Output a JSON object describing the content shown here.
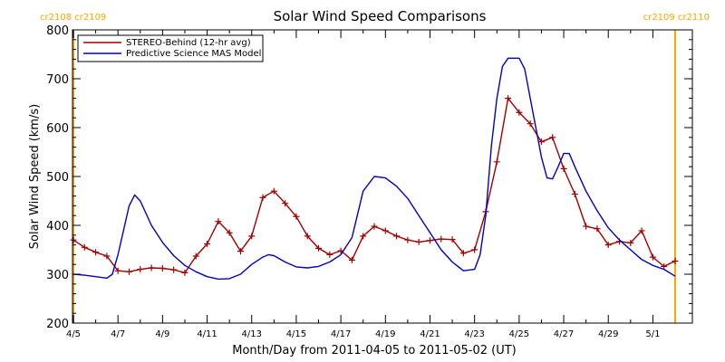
{
  "chart_data": {
    "type": "line",
    "title": "Solar Wind Speed Comparisons",
    "xlabel": "Month/Day from 2011-04-05 to 2011-05-02 (UT)",
    "ylabel": "Solar Wind Speed (km/s)",
    "xlim": [
      "2011-04-05",
      "2011-05-02"
    ],
    "ylim": [
      200,
      800
    ],
    "yticks": [
      200,
      300,
      400,
      500,
      600,
      700,
      800
    ],
    "xticks": [
      {
        "date": "2011-04-05",
        "label": "4/5"
      },
      {
        "date": "2011-04-07",
        "label": "4/7"
      },
      {
        "date": "2011-04-09",
        "label": "4/9"
      },
      {
        "date": "2011-04-11",
        "label": "4/11"
      },
      {
        "date": "2011-04-13",
        "label": "4/13"
      },
      {
        "date": "2011-04-15",
        "label": "4/15"
      },
      {
        "date": "2011-04-17",
        "label": "4/17"
      },
      {
        "date": "2011-04-19",
        "label": "4/19"
      },
      {
        "date": "2011-04-21",
        "label": "4/21"
      },
      {
        "date": "2011-04-23",
        "label": "4/23"
      },
      {
        "date": "2011-04-25",
        "label": "4/25"
      },
      {
        "date": "2011-04-27",
        "label": "4/27"
      },
      {
        "date": "2011-04-29",
        "label": "4/29"
      },
      {
        "date": "2011-05-01",
        "label": "5/1"
      }
    ],
    "legend_position": "top-left",
    "grid": false,
    "carrington_markers": [
      {
        "date": "2011-04-05 00:00",
        "label": "cr2108 cr2109",
        "side": "left"
      },
      {
        "date": "2011-05-02 00:00",
        "label": "cr2109 cr2110",
        "side": "right"
      }
    ],
    "series": [
      {
        "name": "STEREO-Behind (12-hr avg)",
        "color": "#a00000",
        "marker": "plus",
        "points": [
          [
            "2011-04-05 00:00",
            370
          ],
          [
            "2011-04-05 12:00",
            355
          ],
          [
            "2011-04-06 00:00",
            345
          ],
          [
            "2011-04-06 12:00",
            337
          ],
          [
            "2011-04-07 00:00",
            307
          ],
          [
            "2011-04-07 12:00",
            305
          ],
          [
            "2011-04-08 00:00",
            310
          ],
          [
            "2011-04-08 12:00",
            313
          ],
          [
            "2011-04-09 00:00",
            312
          ],
          [
            "2011-04-09 12:00",
            309
          ],
          [
            "2011-04-10 00:00",
            303
          ],
          [
            "2011-04-10 12:00",
            337
          ],
          [
            "2011-04-11 00:00",
            362
          ],
          [
            "2011-04-11 12:00",
            408
          ],
          [
            "2011-04-12 00:00",
            385
          ],
          [
            "2011-04-12 12:00",
            347
          ],
          [
            "2011-04-13 00:00",
            378
          ],
          [
            "2011-04-13 12:00",
            457
          ],
          [
            "2011-04-14 00:00",
            470
          ],
          [
            "2011-04-14 12:00",
            445
          ],
          [
            "2011-04-15 00:00",
            418
          ],
          [
            "2011-04-15 12:00",
            378
          ],
          [
            "2011-04-16 00:00",
            353
          ],
          [
            "2011-04-16 12:00",
            340
          ],
          [
            "2011-04-17 00:00",
            348
          ],
          [
            "2011-04-17 12:00",
            329
          ],
          [
            "2011-04-18 00:00",
            378
          ],
          [
            "2011-04-18 12:00",
            398
          ],
          [
            "2011-04-19 00:00",
            389
          ],
          [
            "2011-04-19 12:00",
            378
          ],
          [
            "2011-04-20 00:00",
            370
          ],
          [
            "2011-04-20 12:00",
            366
          ],
          [
            "2011-04-21 00:00",
            369
          ],
          [
            "2011-04-21 12:00",
            372
          ],
          [
            "2011-04-22 00:00",
            371
          ],
          [
            "2011-04-22 12:00",
            343
          ],
          [
            "2011-04-23 00:00",
            350
          ],
          [
            "2011-04-23 12:00",
            428
          ],
          [
            "2011-04-24 00:00",
            530
          ],
          [
            "2011-04-24 12:00",
            660
          ],
          [
            "2011-04-25 00:00",
            631
          ],
          [
            "2011-04-25 12:00",
            608
          ],
          [
            "2011-04-26 00:00",
            571
          ],
          [
            "2011-04-26 12:00",
            580
          ],
          [
            "2011-04-27 00:00",
            516
          ],
          [
            "2011-04-27 12:00",
            464
          ],
          [
            "2011-04-28 00:00",
            398
          ],
          [
            "2011-04-28 12:00",
            393
          ],
          [
            "2011-04-29 00:00",
            360
          ],
          [
            "2011-04-29 12:00",
            367
          ],
          [
            "2011-04-30 00:00",
            364
          ],
          [
            "2011-04-30 12:00",
            389
          ],
          [
            "2011-05-01 00:00",
            335
          ],
          [
            "2011-05-01 12:00",
            316
          ],
          [
            "2011-05-02 00:00",
            327
          ]
        ]
      },
      {
        "name": "Predictive Science MAS Model",
        "color": "#0000c0",
        "marker": "none",
        "points": [
          [
            "2011-04-05 00:00",
            300
          ],
          [
            "2011-04-05 12:00",
            298
          ],
          [
            "2011-04-06 00:00",
            295
          ],
          [
            "2011-04-06 12:00",
            292
          ],
          [
            "2011-04-06 18:00",
            300
          ],
          [
            "2011-04-07 00:00",
            340
          ],
          [
            "2011-04-07 12:00",
            440
          ],
          [
            "2011-04-07 18:00",
            462
          ],
          [
            "2011-04-08 00:00",
            450
          ],
          [
            "2011-04-08 12:00",
            400
          ],
          [
            "2011-04-09 00:00",
            365
          ],
          [
            "2011-04-09 12:00",
            338
          ],
          [
            "2011-04-10 00:00",
            318
          ],
          [
            "2011-04-10 12:00",
            305
          ],
          [
            "2011-04-11 00:00",
            295
          ],
          [
            "2011-04-11 12:00",
            290
          ],
          [
            "2011-04-12 00:00",
            291
          ],
          [
            "2011-04-12 12:00",
            300
          ],
          [
            "2011-04-13 00:00",
            320
          ],
          [
            "2011-04-13 12:00",
            335
          ],
          [
            "2011-04-13 18:00",
            340
          ],
          [
            "2011-04-14 00:00",
            338
          ],
          [
            "2011-04-14 12:00",
            325
          ],
          [
            "2011-04-15 00:00",
            315
          ],
          [
            "2011-04-15 12:00",
            313
          ],
          [
            "2011-04-16 00:00",
            316
          ],
          [
            "2011-04-16 12:00",
            325
          ],
          [
            "2011-04-17 00:00",
            340
          ],
          [
            "2011-04-17 12:00",
            375
          ],
          [
            "2011-04-18 00:00",
            470
          ],
          [
            "2011-04-18 12:00",
            500
          ],
          [
            "2011-04-19 00:00",
            497
          ],
          [
            "2011-04-19 12:00",
            480
          ],
          [
            "2011-04-20 00:00",
            455
          ],
          [
            "2011-04-20 12:00",
            420
          ],
          [
            "2011-04-21 00:00",
            385
          ],
          [
            "2011-04-21 12:00",
            350
          ],
          [
            "2011-04-22 00:00",
            325
          ],
          [
            "2011-04-22 12:00",
            307
          ],
          [
            "2011-04-23 00:00",
            310
          ],
          [
            "2011-04-23 06:00",
            340
          ],
          [
            "2011-04-23 12:00",
            420
          ],
          [
            "2011-04-23 18:00",
            560
          ],
          [
            "2011-04-24 00:00",
            660
          ],
          [
            "2011-04-24 06:00",
            725
          ],
          [
            "2011-04-24 12:00",
            742
          ],
          [
            "2011-04-25 00:00",
            742
          ],
          [
            "2011-04-25 06:00",
            720
          ],
          [
            "2011-04-25 12:00",
            660
          ],
          [
            "2011-04-26 00:00",
            540
          ],
          [
            "2011-04-26 06:00",
            497
          ],
          [
            "2011-04-26 12:00",
            495
          ],
          [
            "2011-04-26 18:00",
            520
          ],
          [
            "2011-04-27 00:00",
            547
          ],
          [
            "2011-04-27 06:00",
            547
          ],
          [
            "2011-04-27 12:00",
            520
          ],
          [
            "2011-04-28 00:00",
            470
          ],
          [
            "2011-04-28 12:00",
            430
          ],
          [
            "2011-04-29 00:00",
            395
          ],
          [
            "2011-04-29 12:00",
            370
          ],
          [
            "2011-04-30 00:00",
            350
          ],
          [
            "2011-04-30 12:00",
            330
          ],
          [
            "2011-05-01 00:00",
            318
          ],
          [
            "2011-05-01 12:00",
            310
          ],
          [
            "2011-05-02 00:00",
            296
          ]
        ]
      }
    ]
  },
  "colors": {
    "stereo": "#a00000",
    "model": "#0000c0",
    "carrington": "#ffa500",
    "axes": "#000000"
  }
}
